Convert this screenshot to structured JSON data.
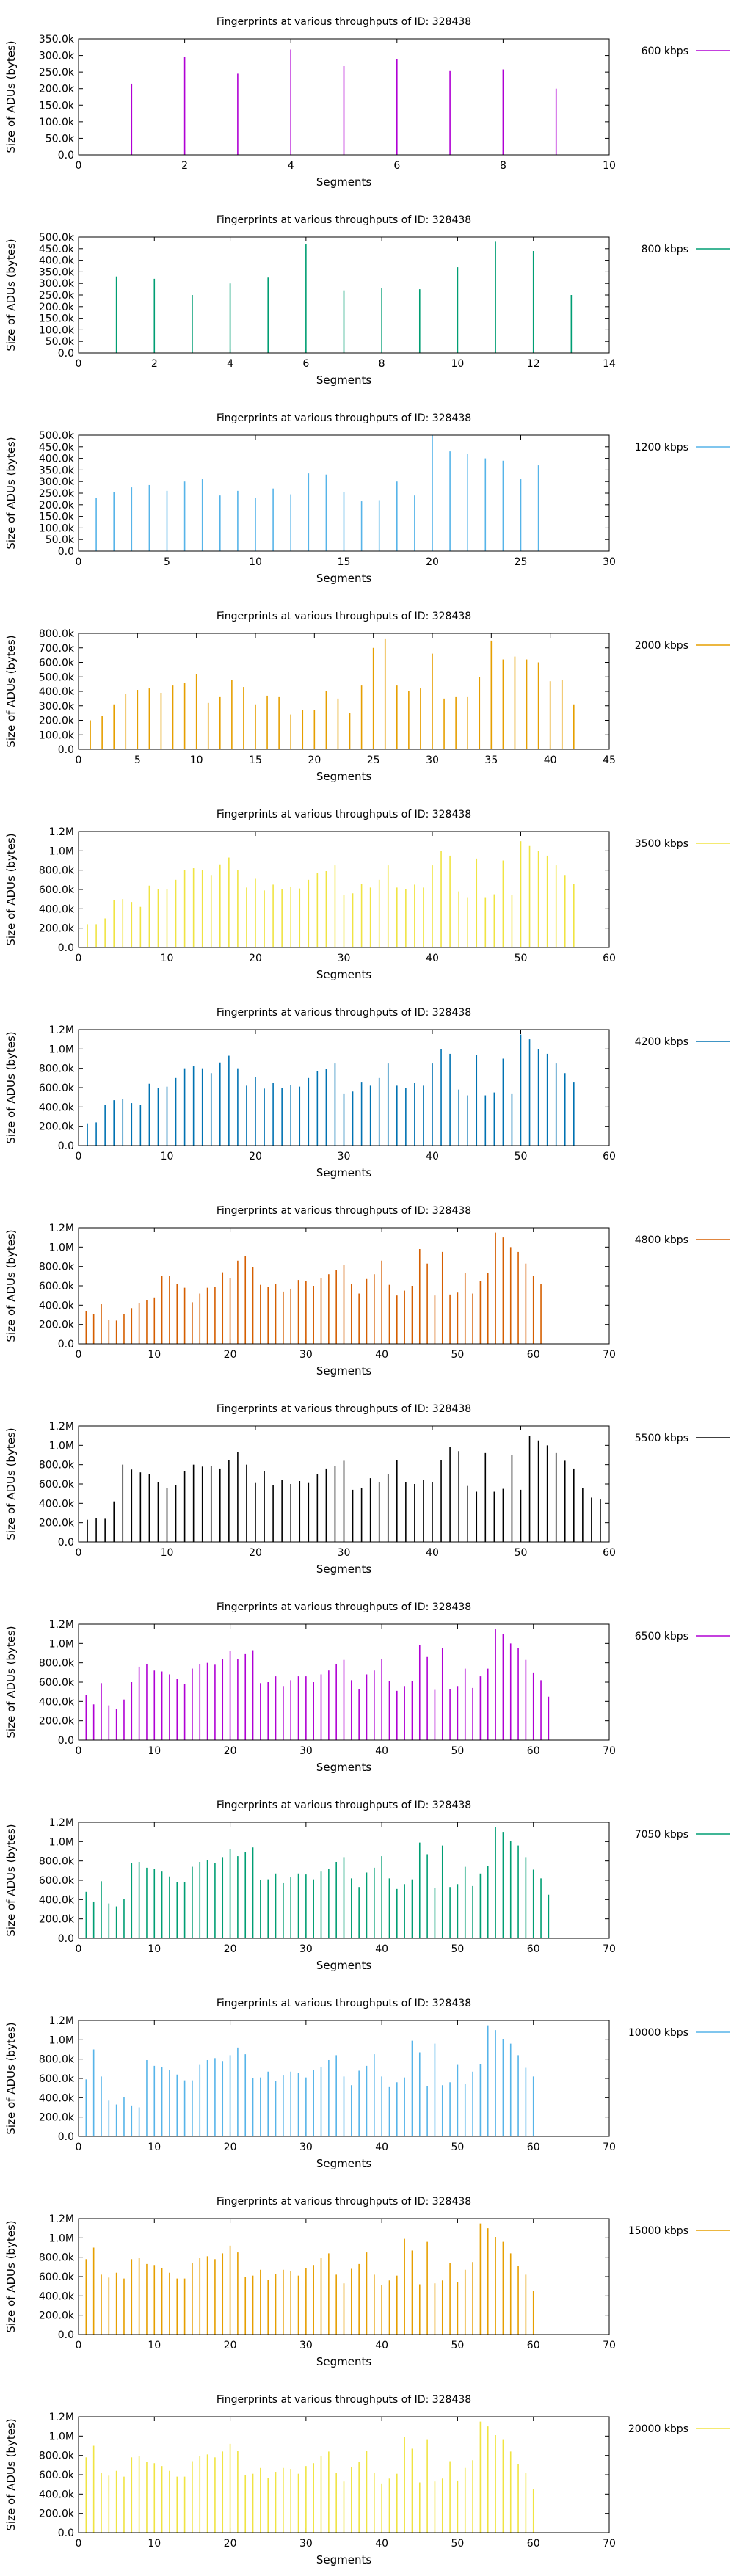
{
  "chart_data": [
    {
      "type": "bar",
      "title": "Fingerprints at various throughputs of ID: 328438",
      "xlabel": "Segments",
      "ylabel": "Size of ADUs (bytes)",
      "legend": "600 kbps",
      "color": "#b000d4",
      "xlim": [
        0,
        10
      ],
      "xticks": [
        0,
        2,
        4,
        6,
        8,
        10
      ],
      "ylim": [
        0,
        350000
      ],
      "yticks": [
        "0.0",
        "50.0k",
        "100.0k",
        "150.0k",
        "200.0k",
        "250.0k",
        "300.0k",
        "350.0k"
      ],
      "x_start": 1,
      "values": [
        215000,
        295000,
        245000,
        318000,
        268000,
        290000,
        253000,
        258000,
        200000
      ]
    },
    {
      "type": "bar",
      "title": "Fingerprints at various throughputs of ID: 328438",
      "xlabel": "Segments",
      "ylabel": "Size of ADUs (bytes)",
      "legend": "800 kbps",
      "color": "#009e73",
      "xlim": [
        0,
        14
      ],
      "xticks": [
        0,
        2,
        4,
        6,
        8,
        10,
        12,
        14
      ],
      "ylim": [
        0,
        500000
      ],
      "yticks": [
        "0.0",
        "50.0k",
        "100.0k",
        "150.0k",
        "200.0k",
        "250.0k",
        "300.0k",
        "350.0k",
        "400.0k",
        "450.0k",
        "500.0k"
      ],
      "x_start": 1,
      "values": [
        330000,
        320000,
        250000,
        300000,
        325000,
        470000,
        270000,
        280000,
        275000,
        370000,
        480000,
        440000,
        250000
      ]
    },
    {
      "type": "bar",
      "title": "Fingerprints at various throughputs of ID: 328438",
      "xlabel": "Segments",
      "ylabel": "Size of ADUs (bytes)",
      "legend": "1200 kbps",
      "color": "#56b4e9",
      "xlim": [
        0,
        30
      ],
      "xticks": [
        0,
        5,
        10,
        15,
        20,
        25,
        30
      ],
      "ylim": [
        0,
        500000
      ],
      "yticks": [
        "0.0",
        "50.0k",
        "100.0k",
        "150.0k",
        "200.0k",
        "250.0k",
        "300.0k",
        "350.0k",
        "400.0k",
        "450.0k",
        "500.0k"
      ],
      "x_start": 1,
      "values": [
        230000,
        255000,
        275000,
        285000,
        260000,
        300000,
        310000,
        240000,
        260000,
        230000,
        270000,
        245000,
        335000,
        330000,
        255000,
        215000,
        220000,
        300000,
        240000,
        500000,
        430000,
        420000,
        400000,
        390000,
        310000,
        370000
      ]
    },
    {
      "type": "bar",
      "title": "Fingerprints at various throughputs of ID: 328438",
      "xlabel": "Segments",
      "ylabel": "Size of ADUs (bytes)",
      "legend": "2000 kbps",
      "color": "#e69f00",
      "xlim": [
        0,
        45
      ],
      "xticks": [
        0,
        5,
        10,
        15,
        20,
        25,
        30,
        35,
        40,
        45
      ],
      "ylim": [
        0,
        800000
      ],
      "yticks": [
        "0.0",
        "100.0k",
        "200.0k",
        "300.0k",
        "400.0k",
        "500.0k",
        "600.0k",
        "700.0k",
        "800.0k"
      ],
      "x_start": 1,
      "values": [
        200000,
        230000,
        310000,
        380000,
        410000,
        420000,
        390000,
        440000,
        460000,
        520000,
        320000,
        360000,
        480000,
        430000,
        310000,
        370000,
        360000,
        240000,
        270000,
        270000,
        400000,
        350000,
        250000,
        440000,
        700000,
        760000,
        440000,
        400000,
        420000,
        660000,
        350000,
        360000,
        360000,
        500000,
        750000,
        620000,
        640000,
        620000,
        600000,
        470000,
        480000,
        310000
      ]
    },
    {
      "type": "bar",
      "title": "Fingerprints at various throughputs of ID: 328438",
      "xlabel": "Segments",
      "ylabel": "Size of ADUs (bytes)",
      "legend": "3500 kbps",
      "color": "#f0e442",
      "xlim": [
        0,
        60
      ],
      "xticks": [
        0,
        10,
        20,
        30,
        40,
        50,
        60
      ],
      "ylim": [
        0,
        1200000
      ],
      "yticks": [
        "0.0",
        "200.0k",
        "400.0k",
        "600.0k",
        "800.0k",
        "1.0M",
        "1.2M"
      ],
      "x_start": 1,
      "values": [
        240000,
        240000,
        300000,
        490000,
        500000,
        470000,
        420000,
        640000,
        600000,
        600000,
        700000,
        800000,
        820000,
        800000,
        750000,
        860000,
        930000,
        800000,
        620000,
        710000,
        590000,
        650000,
        600000,
        630000,
        610000,
        700000,
        770000,
        790000,
        850000,
        540000,
        560000,
        660000,
        620000,
        700000,
        850000,
        620000,
        600000,
        650000,
        620000,
        850000,
        1000000,
        950000,
        580000,
        520000,
        920000,
        520000,
        550000,
        900000,
        540000,
        1100000,
        1050000,
        1000000,
        950000,
        850000,
        750000,
        660000
      ]
    },
    {
      "type": "bar",
      "title": "Fingerprints at various throughputs of ID: 328438",
      "xlabel": "Segments",
      "ylabel": "Size of ADUs (bytes)",
      "legend": "4200 kbps",
      "color": "#0072b2",
      "xlim": [
        0,
        60
      ],
      "xticks": [
        0,
        10,
        20,
        30,
        40,
        50,
        60
      ],
      "ylim": [
        0,
        1200000
      ],
      "yticks": [
        "0.0",
        "200.0k",
        "400.0k",
        "600.0k",
        "800.0k",
        "1.0M",
        "1.2M"
      ],
      "x_start": 1,
      "values": [
        230000,
        240000,
        420000,
        470000,
        480000,
        440000,
        420000,
        640000,
        600000,
        610000,
        700000,
        800000,
        820000,
        800000,
        750000,
        860000,
        930000,
        800000,
        620000,
        710000,
        590000,
        650000,
        600000,
        630000,
        610000,
        700000,
        770000,
        790000,
        850000,
        540000,
        560000,
        660000,
        620000,
        700000,
        850000,
        620000,
        600000,
        650000,
        620000,
        850000,
        1000000,
        950000,
        580000,
        520000,
        940000,
        520000,
        550000,
        900000,
        540000,
        1150000,
        1100000,
        1000000,
        950000,
        850000,
        750000,
        660000
      ]
    },
    {
      "type": "bar",
      "title": "Fingerprints at various throughputs of ID: 328438",
      "xlabel": "Segments",
      "ylabel": "Size of ADUs (bytes)",
      "legend": "4800 kbps",
      "color": "#d55e00",
      "xlim": [
        0,
        70
      ],
      "xticks": [
        0,
        10,
        20,
        30,
        40,
        50,
        60,
        70
      ],
      "ylim": [
        0,
        1200000
      ],
      "yticks": [
        "0.0",
        "200.0k",
        "400.0k",
        "600.0k",
        "800.0k",
        "1.0M",
        "1.2M"
      ],
      "x_start": 1,
      "values": [
        340000,
        310000,
        410000,
        250000,
        240000,
        310000,
        370000,
        420000,
        450000,
        480000,
        700000,
        700000,
        620000,
        580000,
        430000,
        520000,
        580000,
        590000,
        740000,
        680000,
        860000,
        910000,
        790000,
        610000,
        590000,
        620000,
        540000,
        570000,
        660000,
        650000,
        600000,
        680000,
        720000,
        760000,
        820000,
        620000,
        520000,
        670000,
        720000,
        860000,
        610000,
        500000,
        550000,
        600000,
        980000,
        830000,
        500000,
        950000,
        510000,
        530000,
        730000,
        520000,
        650000,
        730000,
        1150000,
        1100000,
        1000000,
        950000,
        830000,
        700000,
        620000
      ]
    },
    {
      "type": "bar",
      "title": "Fingerprints at various throughputs of ID: 328438",
      "xlabel": "Segments",
      "ylabel": "Size of ADUs (bytes)",
      "legend": "5500 kbps",
      "color": "#000000",
      "xlim": [
        0,
        60
      ],
      "xticks": [
        0,
        10,
        20,
        30,
        40,
        50,
        60
      ],
      "ylim": [
        0,
        1200000
      ],
      "yticks": [
        "0.0",
        "200.0k",
        "400.0k",
        "600.0k",
        "800.0k",
        "1.0M",
        "1.2M"
      ],
      "x_start": 1,
      "values": [
        230000,
        250000,
        240000,
        420000,
        800000,
        750000,
        720000,
        700000,
        620000,
        560000,
        590000,
        730000,
        800000,
        780000,
        790000,
        760000,
        850000,
        930000,
        800000,
        610000,
        730000,
        590000,
        640000,
        600000,
        630000,
        610000,
        700000,
        760000,
        790000,
        840000,
        540000,
        560000,
        660000,
        620000,
        700000,
        850000,
        620000,
        600000,
        640000,
        620000,
        850000,
        980000,
        940000,
        580000,
        520000,
        920000,
        520000,
        550000,
        900000,
        540000,
        1100000,
        1050000,
        1000000,
        920000,
        840000,
        760000,
        560000,
        460000,
        440000
      ]
    },
    {
      "type": "bar",
      "title": "Fingerprints at various throughputs of ID: 328438",
      "xlabel": "Segments",
      "ylabel": "Size of ADUs (bytes)",
      "legend": "6500 kbps",
      "color": "#b000d4",
      "xlim": [
        0,
        70
      ],
      "xticks": [
        0,
        10,
        20,
        30,
        40,
        50,
        60,
        70
      ],
      "ylim": [
        0,
        1200000
      ],
      "yticks": [
        "0.0",
        "200.0k",
        "400.0k",
        "600.0k",
        "800.0k",
        "1.0M",
        "1.2M"
      ],
      "x_start": 1,
      "values": [
        470000,
        370000,
        590000,
        360000,
        320000,
        420000,
        600000,
        760000,
        790000,
        720000,
        710000,
        680000,
        630000,
        580000,
        740000,
        790000,
        800000,
        780000,
        840000,
        920000,
        840000,
        890000,
        930000,
        590000,
        600000,
        660000,
        560000,
        620000,
        660000,
        660000,
        600000,
        680000,
        720000,
        790000,
        830000,
        620000,
        530000,
        680000,
        720000,
        840000,
        610000,
        510000,
        560000,
        610000,
        980000,
        860000,
        520000,
        950000,
        530000,
        560000,
        740000,
        540000,
        660000,
        740000,
        1150000,
        1100000,
        1000000,
        950000,
        830000,
        700000,
        620000,
        450000
      ]
    },
    {
      "type": "bar",
      "title": "Fingerprints at various throughputs of ID: 328438",
      "xlabel": "Segments",
      "ylabel": "Size of ADUs (bytes)",
      "legend": "7050 kbps",
      "color": "#009e73",
      "xlim": [
        0,
        70
      ],
      "xticks": [
        0,
        10,
        20,
        30,
        40,
        50,
        60,
        70
      ],
      "ylim": [
        0,
        1200000
      ],
      "yticks": [
        "0.0",
        "200.0k",
        "400.0k",
        "600.0k",
        "800.0k",
        "1.0M",
        "1.2M"
      ],
      "x_start": 1,
      "values": [
        480000,
        380000,
        590000,
        360000,
        330000,
        410000,
        780000,
        790000,
        730000,
        720000,
        690000,
        640000,
        580000,
        580000,
        740000,
        790000,
        810000,
        780000,
        840000,
        920000,
        850000,
        890000,
        940000,
        600000,
        610000,
        670000,
        570000,
        630000,
        670000,
        660000,
        610000,
        690000,
        720000,
        790000,
        840000,
        620000,
        530000,
        680000,
        730000,
        850000,
        620000,
        510000,
        560000,
        610000,
        990000,
        870000,
        520000,
        960000,
        530000,
        560000,
        740000,
        540000,
        670000,
        750000,
        1150000,
        1100000,
        1010000,
        960000,
        840000,
        710000,
        620000,
        450000
      ]
    },
    {
      "type": "bar",
      "title": "Fingerprints at various throughputs of ID: 328438",
      "xlabel": "Segments",
      "ylabel": "Size of ADUs (bytes)",
      "legend": "10000 kbps",
      "color": "#56b4e9",
      "xlim": [
        0,
        70
      ],
      "xticks": [
        0,
        10,
        20,
        30,
        40,
        50,
        60,
        70
      ],
      "ylim": [
        0,
        1200000
      ],
      "yticks": [
        "0.0",
        "200.0k",
        "400.0k",
        "600.0k",
        "800.0k",
        "1.0M",
        "1.2M"
      ],
      "x_start": 1,
      "values": [
        590000,
        900000,
        620000,
        370000,
        330000,
        410000,
        320000,
        300000,
        790000,
        730000,
        720000,
        690000,
        640000,
        580000,
        580000,
        740000,
        790000,
        810000,
        780000,
        840000,
        920000,
        850000,
        600000,
        610000,
        670000,
        570000,
        630000,
        670000,
        660000,
        610000,
        690000,
        720000,
        790000,
        840000,
        620000,
        530000,
        680000,
        730000,
        850000,
        620000,
        510000,
        560000,
        610000,
        990000,
        870000,
        520000,
        960000,
        530000,
        560000,
        740000,
        540000,
        670000,
        750000,
        1150000,
        1100000,
        1010000,
        960000,
        840000,
        710000,
        620000
      ]
    },
    {
      "type": "bar",
      "title": "Fingerprints at various throughputs of ID: 328438",
      "xlabel": "Segments",
      "ylabel": "Size of ADUs (bytes)",
      "legend": "15000 kbps",
      "color": "#e69f00",
      "xlim": [
        0,
        70
      ],
      "xticks": [
        0,
        10,
        20,
        30,
        40,
        50,
        60,
        70
      ],
      "ylim": [
        0,
        1200000
      ],
      "yticks": [
        "0.0",
        "200.0k",
        "400.0k",
        "600.0k",
        "800.0k",
        "1.0M",
        "1.2M"
      ],
      "x_start": 1,
      "values": [
        780000,
        900000,
        620000,
        590000,
        640000,
        580000,
        780000,
        790000,
        730000,
        720000,
        690000,
        640000,
        580000,
        580000,
        740000,
        790000,
        810000,
        780000,
        840000,
        920000,
        850000,
        600000,
        610000,
        670000,
        570000,
        630000,
        670000,
        660000,
        610000,
        690000,
        720000,
        790000,
        840000,
        620000,
        530000,
        680000,
        730000,
        850000,
        620000,
        510000,
        560000,
        610000,
        990000,
        870000,
        520000,
        960000,
        530000,
        560000,
        740000,
        540000,
        670000,
        750000,
        1150000,
        1100000,
        1010000,
        960000,
        840000,
        710000,
        620000,
        450000
      ]
    },
    {
      "type": "bar",
      "title": "Fingerprints at various throughputs of ID: 328438",
      "xlabel": "Segments",
      "ylabel": "Size of ADUs (bytes)",
      "legend": "20000 kbps",
      "color": "#f0e442",
      "xlim": [
        0,
        70
      ],
      "xticks": [
        0,
        10,
        20,
        30,
        40,
        50,
        60,
        70
      ],
      "ylim": [
        0,
        1200000
      ],
      "yticks": [
        "0.0",
        "200.0k",
        "400.0k",
        "600.0k",
        "800.0k",
        "1.0M",
        "1.2M"
      ],
      "x_start": 1,
      "values": [
        780000,
        900000,
        620000,
        590000,
        640000,
        580000,
        780000,
        790000,
        730000,
        720000,
        690000,
        640000,
        580000,
        580000,
        740000,
        790000,
        810000,
        780000,
        840000,
        920000,
        850000,
        600000,
        610000,
        670000,
        570000,
        630000,
        670000,
        660000,
        610000,
        690000,
        720000,
        790000,
        840000,
        620000,
        530000,
        680000,
        730000,
        850000,
        620000,
        510000,
        560000,
        610000,
        990000,
        870000,
        520000,
        960000,
        530000,
        560000,
        740000,
        540000,
        670000,
        750000,
        1150000,
        1100000,
        1010000,
        960000,
        840000,
        710000,
        620000,
        450000
      ]
    }
  ]
}
